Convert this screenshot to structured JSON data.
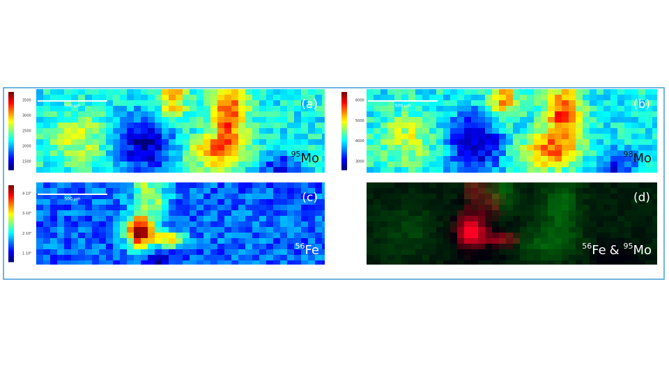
{
  "panels": [
    {
      "label": "(a)",
      "isotope": [
        {
          "mass": "95",
          "element": "Mo"
        }
      ],
      "scale_bar": "500 µm",
      "colorbar_ticks": [
        "3500",
        "3000",
        "2500",
        "2000",
        "1500"
      ]
    },
    {
      "label": "(b)",
      "isotope": [
        {
          "mass": "98",
          "element": "Mo"
        }
      ],
      "scale_bar": "500 µm",
      "colorbar_ticks": [
        "6000",
        "5000",
        "4000",
        "3000"
      ]
    },
    {
      "label": "(c)",
      "isotope": [
        {
          "mass": "56",
          "element": "Fe"
        }
      ],
      "scale_bar": "500 µm",
      "colorbar_ticks": [
        "4·10⁵",
        "3·10⁵",
        "2·10⁵",
        "1·10⁵"
      ]
    },
    {
      "label": "(d)",
      "isotope": [
        {
          "mass": "56",
          "element": "Fe"
        },
        {
          "mass": "95",
          "element": "Mo"
        }
      ],
      "joiner": "&"
    }
  ]
}
